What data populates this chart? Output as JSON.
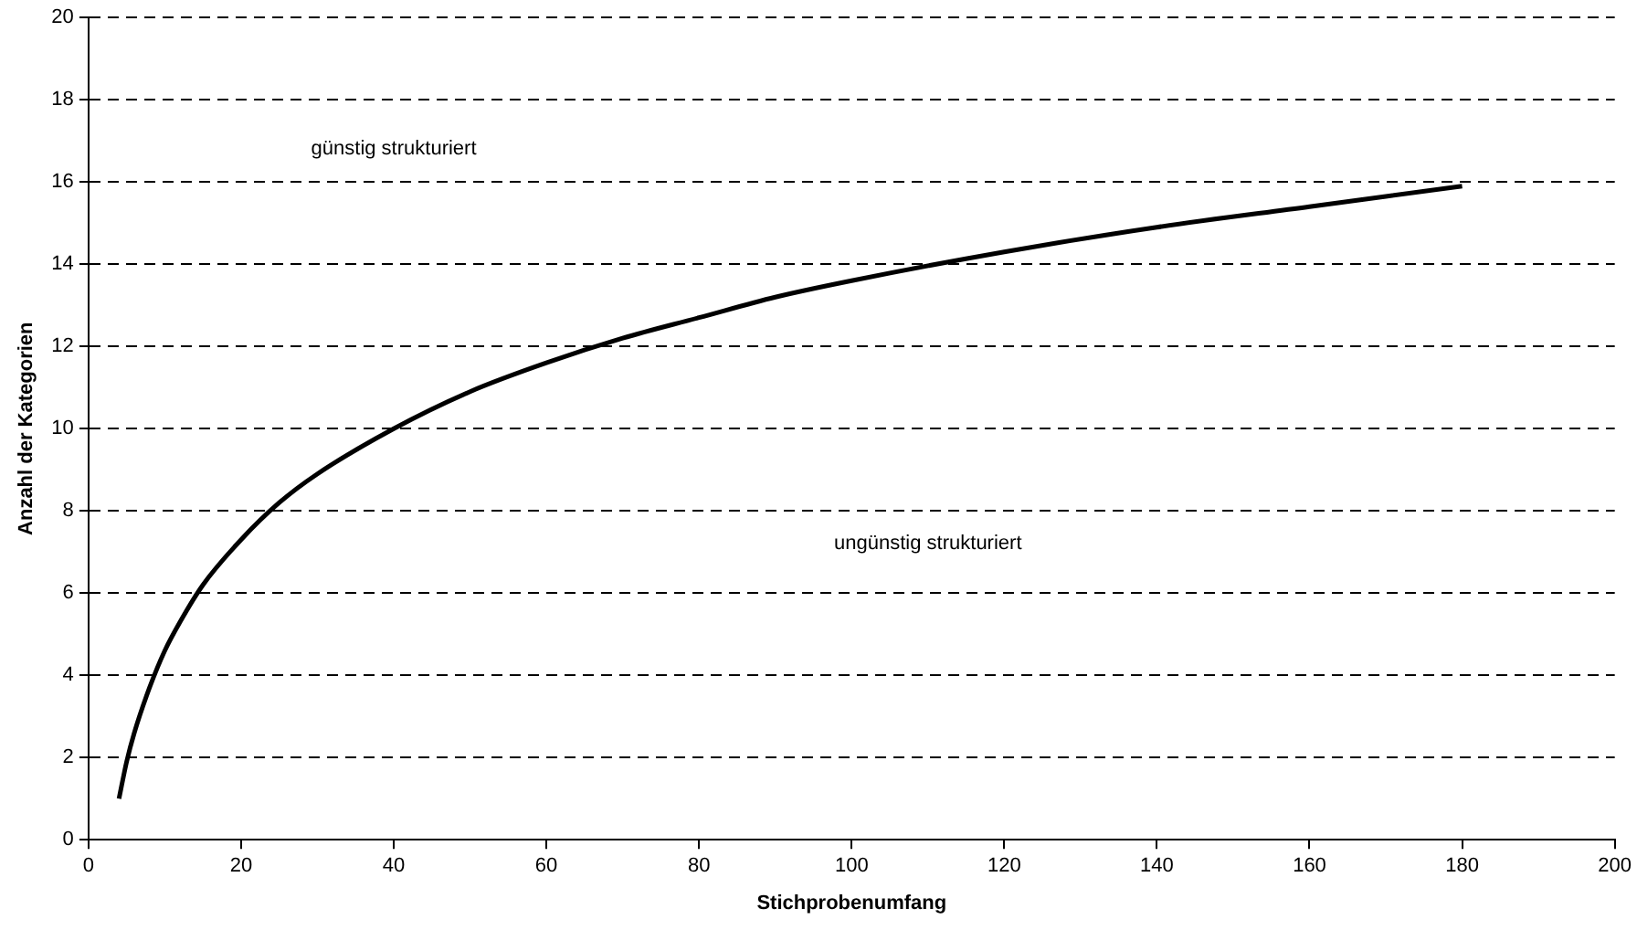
{
  "chart_data": {
    "type": "line",
    "xlabel": "Stichprobenumfang",
    "ylabel": "Anzahl der Kategorien",
    "x": [
      4,
      5,
      6,
      8,
      10,
      12,
      15,
      20,
      25,
      30,
      40,
      50,
      60,
      70,
      80,
      90,
      100,
      120,
      140,
      160,
      180
    ],
    "series": [
      {
        "color": "#000000",
        "values": [
          1,
          1.9,
          2.6,
          3.7,
          4.6,
          5.3,
          6.2,
          7.3,
          8.2,
          8.9,
          10,
          10.9,
          11.6,
          12.2,
          12.7,
          13.2,
          13.6,
          14.3,
          14.9,
          15.4,
          15.9
        ]
      }
    ],
    "xlim": [
      0,
      200
    ],
    "xticks": [
      0,
      20,
      40,
      60,
      80,
      100,
      120,
      140,
      160,
      180,
      200
    ],
    "ylim": [
      0,
      20
    ],
    "yticks": [
      0,
      2,
      4,
      6,
      8,
      10,
      12,
      14,
      16,
      18,
      20
    ],
    "grid": "y",
    "legend": false,
    "marker": "none",
    "line_style": "solid",
    "annotations": [
      "günstig strukturiert",
      "ungünstig strukturiert"
    ]
  }
}
